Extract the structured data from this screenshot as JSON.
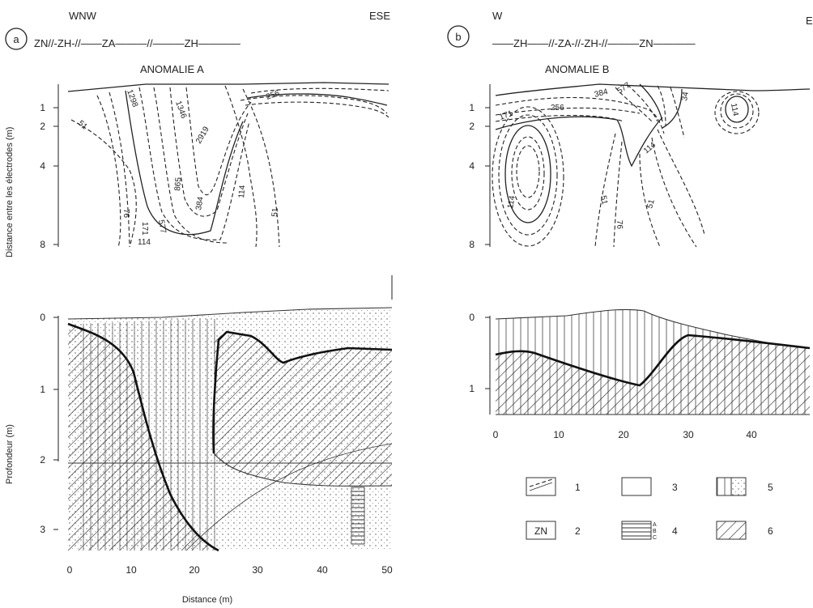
{
  "panel_a": {
    "letter": "a",
    "dir_left": "WNW",
    "dir_right": "ESE",
    "zone_strip": "ZN//-ZH-//——ZA———//———ZH————",
    "anomaly": "ANOMALIE A",
    "contour_labels": [
      "1346",
      "1298",
      "2919",
      "256",
      "51",
      "76",
      "171",
      "114",
      "577",
      "865",
      "384",
      "114",
      "51"
    ],
    "depth_ticks": [
      "1",
      "2",
      "4",
      "8"
    ],
    "prof_ticks": [
      "0",
      "1",
      "2",
      "3"
    ],
    "x_ticks": [
      "0",
      "10",
      "20",
      "30",
      "40",
      "50"
    ]
  },
  "panel_b": {
    "letter": "b",
    "dir_left": "W",
    "dir_right": "E",
    "zone_strip": "——ZH——//-ZA-//-ZH-//———ZN————",
    "anomaly": "ANOMALIE B",
    "contour_labels": [
      "171",
      "256",
      "384",
      "577",
      "34",
      "114",
      "114",
      "51",
      "76",
      "51",
      "114"
    ],
    "depth_ticks": [
      "1",
      "2",
      "4",
      "8"
    ],
    "prof_ticks": [
      "0",
      "1"
    ],
    "x_ticks": [
      "0",
      "10",
      "20",
      "30",
      "40"
    ]
  },
  "axes": {
    "ylabel_top": "Distance entre les électrodes (m)",
    "ylabel_bottom": "Profondeur (m)",
    "xlabel": "Distance (m)"
  },
  "legend": {
    "items": [
      {
        "num": "1"
      },
      {
        "num": "2",
        "box_text": "ZN"
      },
      {
        "num": "3"
      },
      {
        "num": "4",
        "sub": [
          "A",
          "B",
          "C"
        ]
      },
      {
        "num": "5"
      },
      {
        "num": "6"
      }
    ]
  }
}
